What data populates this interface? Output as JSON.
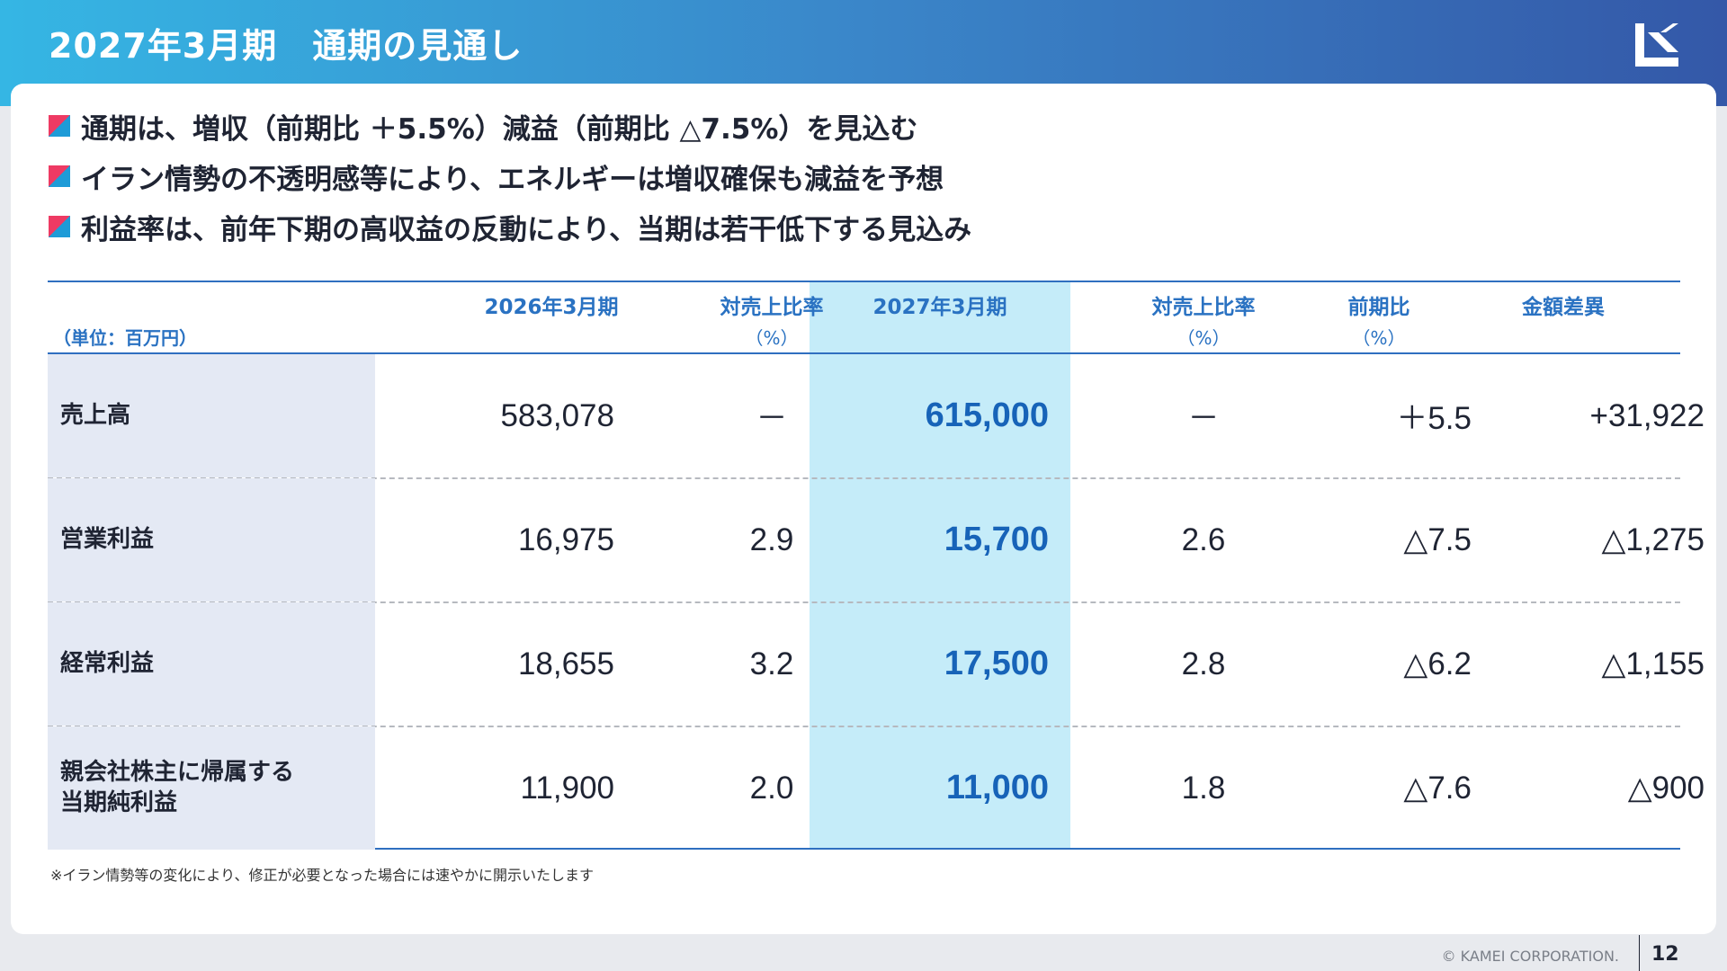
{
  "header": {
    "title": "2027年3月期　通期の見通し"
  },
  "bullets": [
    "通期は、増収（前期比 ＋5.5%）減益（前期比 △7.5%）を見込む",
    "イラン情勢の不透明感等により、エネルギーは増収確保も減益を予想",
    "利益率は、前年下期の高収益の反動により、当期は若干低下する見込み"
  ],
  "table": {
    "unit": "（単位：百万円）",
    "headers": {
      "fy2026": "2026年3月期",
      "ratio": "対売上比率",
      "ratio_unit": "（%）",
      "fy2027": "2027年3月期",
      "yoy": "前期比",
      "yoy_unit": "（%）",
      "diff": "金額差異"
    },
    "rows": [
      {
        "label": "売上高",
        "fy2026": "583,078",
        "ratio2026": "－",
        "fy2027": "615,000",
        "ratio2027": "－",
        "yoy": "＋5.5",
        "diff": "+31,922"
      },
      {
        "label": "営業利益",
        "fy2026": "16,975",
        "ratio2026": "2.9",
        "fy2027": "15,700",
        "ratio2027": "2.6",
        "yoy": "△7.5",
        "diff": "△1,275"
      },
      {
        "label": "経常利益",
        "fy2026": "18,655",
        "ratio2026": "3.2",
        "fy2027": "17,500",
        "ratio2027": "2.8",
        "yoy": "△6.2",
        "diff": "△1,155"
      },
      {
        "label_line1": "親会社株主に帰属する",
        "label_line2": "当期純利益",
        "fy2026": "11,900",
        "ratio2026": "2.0",
        "fy2027": "11,000",
        "ratio2027": "1.8",
        "yoy": "△7.6",
        "diff": "△900"
      }
    ]
  },
  "note": "※イラン情勢等の変化により、修正が必要となった場合には速やかに開示いたします",
  "footer": {
    "copyright": "© KAMEI CORPORATION.",
    "page": "12"
  },
  "colors": {
    "accent_blue": "#2a72c2",
    "highlight_column": "#c5ecf9",
    "row_label_bg": "#e4e9f4",
    "marker_red": "#ee3a63",
    "marker_blue": "#1e9bd7"
  }
}
